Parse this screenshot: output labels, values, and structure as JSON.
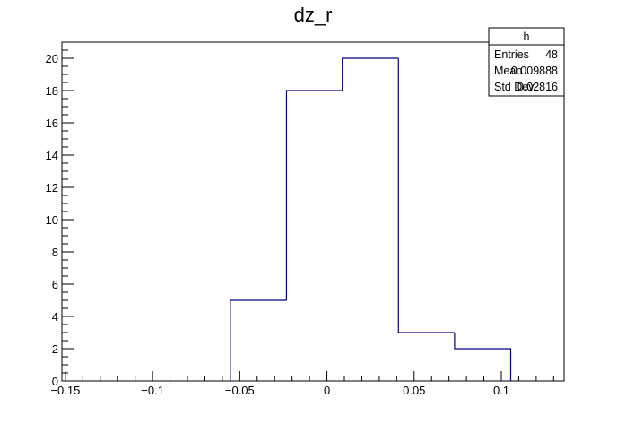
{
  "chart_data": {
    "type": "histogram",
    "title": "dz_r",
    "xlabel": "",
    "ylabel": "",
    "xlim": [
      -0.152,
      0.136
    ],
    "ylim": [
      0,
      21
    ],
    "grid": false,
    "line_color": "#000080",
    "bins": [
      {
        "x0": -0.0554,
        "x1": -0.0232,
        "count": 5
      },
      {
        "x0": -0.0232,
        "x1": 0.0088,
        "count": 18
      },
      {
        "x0": 0.0088,
        "x1": 0.041,
        "count": 20
      },
      {
        "x0": 0.041,
        "x1": 0.0732,
        "count": 3
      },
      {
        "x0": 0.0732,
        "x1": 0.1054,
        "count": 2
      }
    ],
    "x_ticks": [
      {
        "value": -0.15,
        "label": "−0.15"
      },
      {
        "value": -0.1,
        "label": "−0.1"
      },
      {
        "value": -0.05,
        "label": "−0.05"
      },
      {
        "value": 0,
        "label": "0"
      },
      {
        "value": 0.05,
        "label": "0.05"
      },
      {
        "value": 0.1,
        "label": "0.1"
      }
    ],
    "y_ticks": [
      {
        "value": 0,
        "label": "0"
      },
      {
        "value": 2,
        "label": "2"
      },
      {
        "value": 4,
        "label": "4"
      },
      {
        "value": 6,
        "label": "6"
      },
      {
        "value": 8,
        "label": "8"
      },
      {
        "value": 10,
        "label": "10"
      },
      {
        "value": 12,
        "label": "12"
      },
      {
        "value": 14,
        "label": "14"
      },
      {
        "value": 16,
        "label": "16"
      },
      {
        "value": 18,
        "label": "18"
      },
      {
        "value": 20,
        "label": "20"
      }
    ]
  },
  "stats_box": {
    "name": "h",
    "rows": [
      {
        "label": "Entries",
        "value": "48"
      },
      {
        "label": "Mean",
        "value": "0.009888"
      },
      {
        "label": "Std Dev",
        "value": "0.02816"
      }
    ]
  }
}
